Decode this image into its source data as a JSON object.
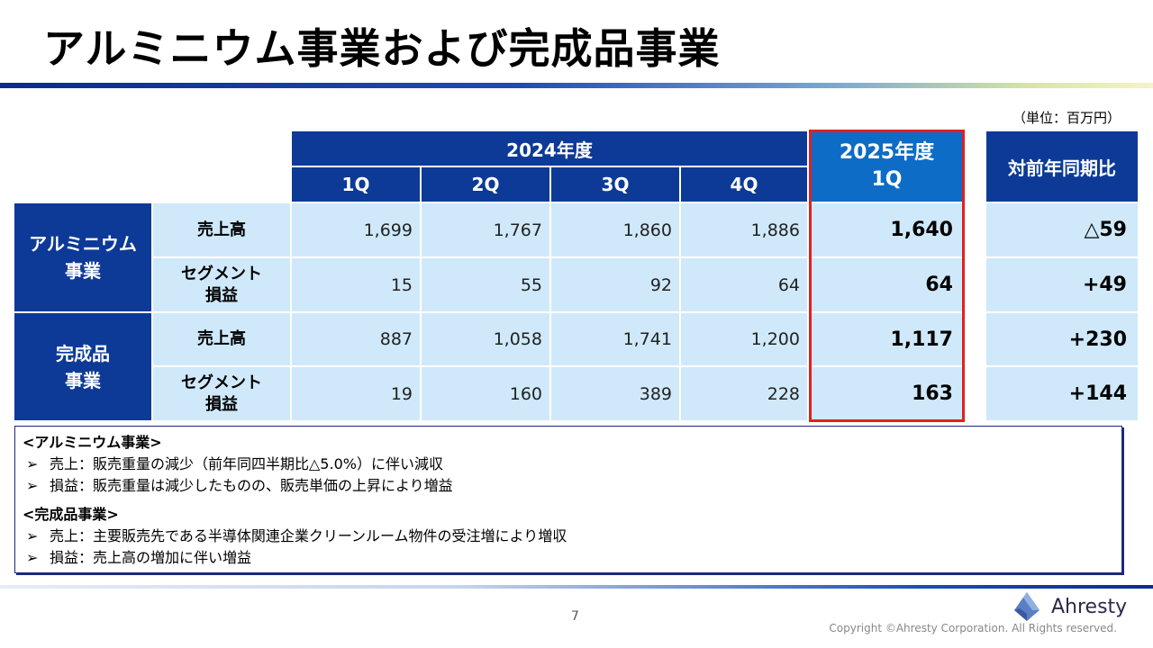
{
  "title": "アルミニウム事業および完成品事業",
  "unit": "（単位：百万円）",
  "table": {
    "header_2024": "2024年度",
    "quarters": [
      "1Q",
      "2Q",
      "3Q",
      "4Q"
    ],
    "header_2025_line1": "2025年度",
    "header_2025_line2": "1Q",
    "header_yoy": "対前年同期比",
    "segments": [
      {
        "name_line1": "アルミニウム",
        "name_line2": "事業",
        "rows": [
          {
            "label_line1": "売上高",
            "label_line2": "",
            "values": [
              "1,699",
              "1,767",
              "1,860",
              "1,886"
            ],
            "current": "1,640",
            "yoy": "△59"
          },
          {
            "label_line1": "セグメント",
            "label_line2": "損益",
            "values": [
              "15",
              "55",
              "92",
              "64"
            ],
            "current": "64",
            "yoy": "+49"
          }
        ]
      },
      {
        "name_line1": "完成品",
        "name_line2": "事業",
        "rows": [
          {
            "label_line1": "売上高",
            "label_line2": "",
            "values": [
              "887",
              "1,058",
              "1,741",
              "1,200"
            ],
            "current": "1,117",
            "yoy": "+230"
          },
          {
            "label_line1": "セグメント",
            "label_line2": "損益",
            "values": [
              "19",
              "160",
              "389",
              "228"
            ],
            "current": "163",
            "yoy": "+144"
          }
        ]
      }
    ]
  },
  "notes": {
    "aluminum_heading": "<アルミニウム事業>",
    "aluminum_bullets": [
      "売上：販売重量の減少（前年同四半期比△5.0%）に伴い減収",
      "損益：販売重量は減少したものの、販売単価の上昇により増益"
    ],
    "finished_heading": "<完成品事業>",
    "finished_bullets": [
      "売上：主要販売先である半導体関連企業クリーンルーム物件の受注増により増収",
      "損益：売上高の増加に伴い増益"
    ],
    "bullet_glyph": "➢"
  },
  "footer": {
    "page_number": "7",
    "logo_text": "Ahresty",
    "copyright": "Copyright ©Ahresty Corporation. All Rights reserved."
  },
  "colors": {
    "header_dark": "#0d3a96",
    "header_highlight": "#0c6cc6",
    "cell_light": "#cfe9fa",
    "highlight_border": "#e02020"
  }
}
